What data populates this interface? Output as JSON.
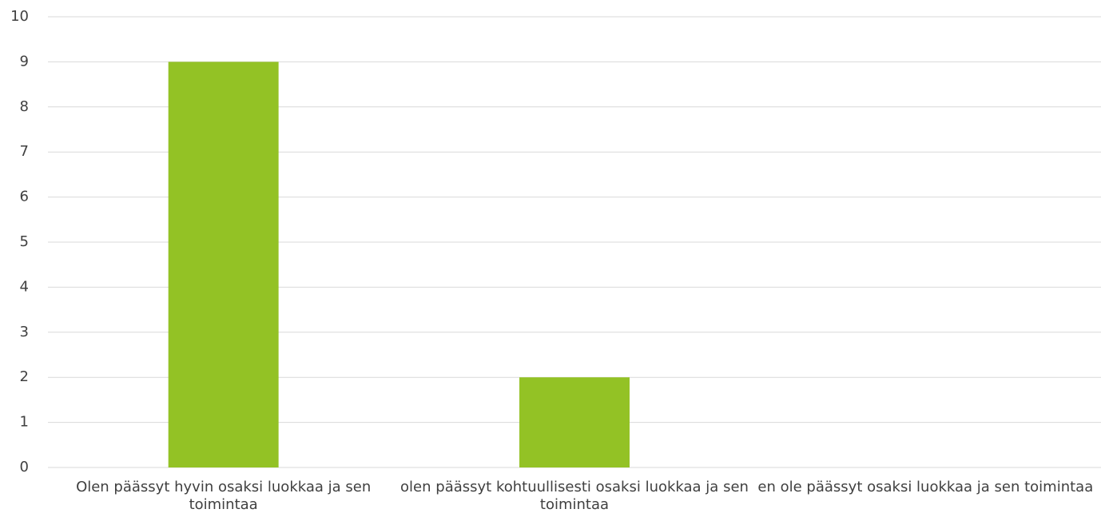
{
  "chart_data": {
    "type": "bar",
    "categories": [
      "Olen päässyt hyvin osaksi luokkaa ja sen toimintaa",
      "olen päässyt kohtuullisesti osaksi luokkaa ja sen toimintaa",
      "en ole päässyt osaksi luokkaa ja sen toimintaa"
    ],
    "values": [
      9,
      2,
      0
    ],
    "color": "#93c225",
    "ylim": [
      0,
      10
    ],
    "yticks": [
      0,
      1,
      2,
      3,
      4,
      5,
      6,
      7,
      8,
      9,
      10
    ],
    "grid": true
  }
}
